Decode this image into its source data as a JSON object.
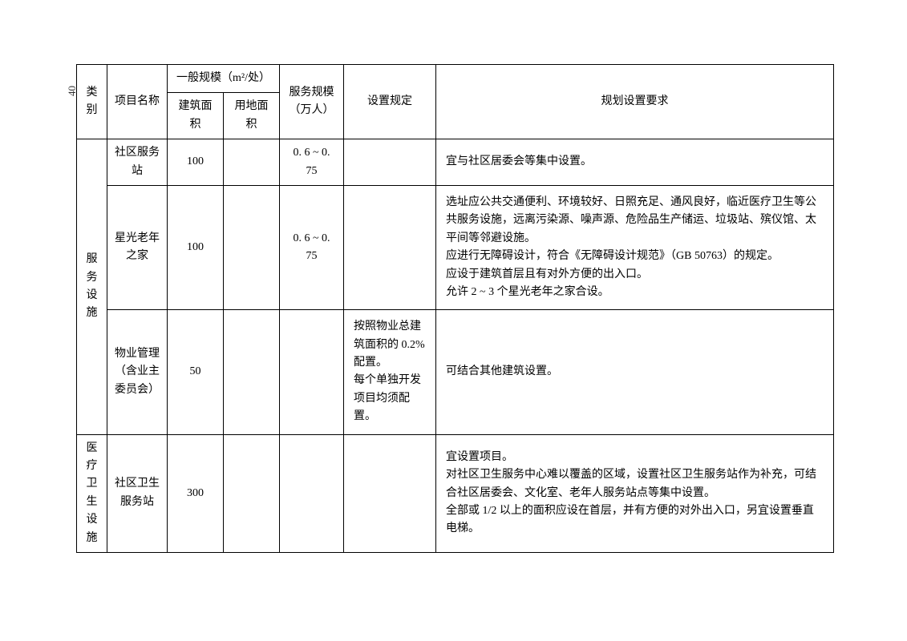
{
  "page_number": "40",
  "table": {
    "header": {
      "category": "类别",
      "project_name": "项目名称",
      "general_scale": "一般规模（m²/处）",
      "building_area": "建筑面积",
      "land_area": "用地面积",
      "service_scale": "服务规模（万人）",
      "setting_rule": "设置规定",
      "planning_req": "规划设置要求"
    },
    "categories": [
      {
        "label": "服务设施",
        "rows": [
          {
            "name": "社区服务站",
            "building_area": "100",
            "land_area": "",
            "service_scale": "0. 6 ~ 0. 75",
            "setting_rule": "",
            "planning_req": "宜与社区居委会等集中设置。"
          },
          {
            "name": "星光老年之家",
            "building_area": "100",
            "land_area": "",
            "service_scale": "0. 6 ~ 0. 75",
            "setting_rule": "",
            "planning_req": "选址应公共交通便利、环境较好、日照充足、通风良好，临近医疗卫生等公共服务设施，远离污染源、噪声源、危险品生产储运、垃圾站、殡仪馆、太平间等邻避设施。\n应进行无障碍设计，符合《无障碍设计规范》（GB 50763）的规定。\n应设于建筑首层且有对外方便的出入口。\n允许 2 ~ 3 个星光老年之家合设。"
          },
          {
            "name": "物业管理（含业主委员会）",
            "building_area": "50",
            "land_area": "",
            "service_scale": "",
            "setting_rule": "按照物业总建筑面积的 0.2% 配置。\n每个单独开发项目均须配置。",
            "planning_req": "可结合其他建筑设置。"
          }
        ]
      },
      {
        "label": "医疗卫生设施",
        "rows": [
          {
            "name": "社区卫生服务站",
            "building_area": "300",
            "land_area": "",
            "service_scale": "",
            "setting_rule": "",
            "planning_req": "宜设置项目。\n对社区卫生服务中心难以覆盖的区域，设置社区卫生服务站作为补充，可结合社区居委会、文化室、老年人服务站点等集中设置。\n全部或 1/2 以上的面积应设在首层，并有方便的对外出入口，另宜设置垂直电梯。"
          }
        ]
      }
    ]
  }
}
